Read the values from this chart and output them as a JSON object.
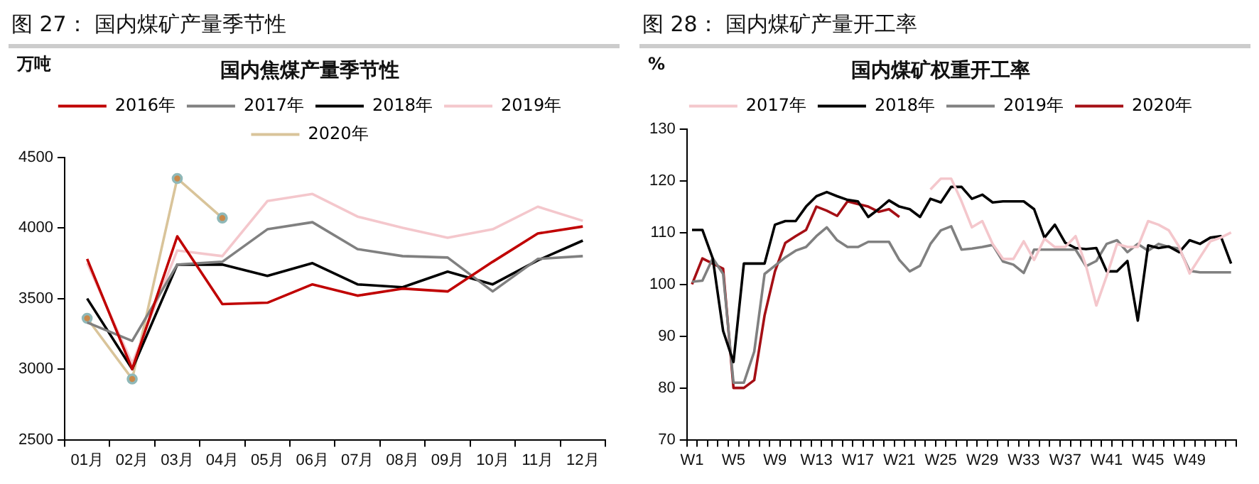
{
  "chart_data": [
    {
      "type": "line",
      "title": "图 27：  国内煤矿产量季节性",
      "subtitle": "国内焦煤产量季节性",
      "ylabel": "万吨",
      "categories": [
        "01月",
        "02月",
        "03月",
        "04月",
        "05月",
        "06月",
        "07月",
        "08月",
        "09月",
        "10月",
        "11月",
        "12月"
      ],
      "ylim": [
        2500,
        4500
      ],
      "yticks": [
        2500,
        3000,
        3500,
        4000,
        4500
      ],
      "grid": false,
      "legend": "top",
      "marker": "none",
      "line_style": "solid",
      "series": [
        {
          "name": "2016年",
          "color": "#c00000",
          "values": [
            3780,
            3000,
            3940,
            3460,
            3470,
            3600,
            3520,
            3570,
            3550,
            3760,
            3960,
            4010
          ]
        },
        {
          "name": "2017年",
          "color": "#808080",
          "values": [
            3330,
            3200,
            3740,
            3760,
            3990,
            4040,
            3850,
            3800,
            3790,
            3550,
            3780,
            3800
          ]
        },
        {
          "name": "2018年",
          "color": "#000000",
          "values": [
            3500,
            3000,
            3740,
            3740,
            3660,
            3750,
            3600,
            3580,
            3690,
            3600,
            3770,
            3910
          ]
        },
        {
          "name": "2019年",
          "color": "#f4c7cc",
          "values": [
            3750,
            3040,
            3840,
            3800,
            4190,
            4240,
            4080,
            4000,
            3930,
            3990,
            4150,
            4050
          ]
        },
        {
          "name": "2020年",
          "color": "#d9c49a",
          "marker": "circle",
          "values": [
            3360,
            2930,
            4350,
            4070,
            null,
            null,
            null,
            null,
            null,
            null,
            null,
            null
          ]
        }
      ]
    },
    {
      "type": "line",
      "title": "图 28：  国内煤矿产量开工率",
      "subtitle": "国内煤矿权重开工率",
      "ylabel": "%",
      "categories": [
        "W1",
        null,
        null,
        null,
        "W5",
        null,
        null,
        null,
        "W9",
        null,
        null,
        null,
        "W13",
        null,
        null,
        null,
        "W17",
        null,
        null,
        null,
        "W21",
        null,
        null,
        null,
        "W25",
        null,
        null,
        null,
        "W29",
        null,
        null,
        null,
        "W33",
        null,
        null,
        null,
        "W37",
        null,
        null,
        null,
        "W41",
        null,
        null,
        null,
        "W45",
        null,
        null,
        null,
        "W49",
        null,
        null,
        null,
        null
      ],
      "ylim": [
        70,
        130
      ],
      "yticks": [
        70,
        80,
        90,
        100,
        110,
        120,
        130
      ],
      "grid": false,
      "legend": "top",
      "marker": "none",
      "line_style": "solid",
      "series": [
        {
          "name": "2017年",
          "color": "#f4c7cc",
          "values": [
            null,
            null,
            null,
            null,
            null,
            null,
            null,
            null,
            null,
            null,
            null,
            null,
            null,
            null,
            null,
            null,
            null,
            null,
            null,
            null,
            null,
            null,
            null,
            118.3,
            120.4,
            120.4,
            116,
            111,
            112.2,
            107.8,
            104.9,
            104.9,
            108.3,
            104.7,
            108.8,
            107.2,
            107.2,
            109.3,
            103.6,
            95.9,
            101.6,
            107.8,
            107.2,
            107.2,
            112.2,
            111.5,
            110.4,
            107.2,
            102.1,
            105.2,
            108.3,
            109,
            110
          ]
        },
        {
          "name": "2018年",
          "color": "#000000",
          "values": [
            110.5,
            110.5,
            105,
            91,
            85,
            104,
            104,
            104,
            111.5,
            112.2,
            112.2,
            115,
            117,
            117.8,
            117,
            116.3,
            116,
            113,
            114.5,
            116.2,
            115,
            114.5,
            113,
            116.5,
            115.8,
            118.8,
            118.8,
            116.5,
            117.3,
            115.8,
            116,
            116,
            116,
            114.5,
            109,
            111.5,
            108,
            107,
            106.8,
            107,
            102.5,
            102.5,
            104.5,
            93,
            107.5,
            107,
            107.3,
            106.2,
            108.5,
            107.8,
            109,
            109.3,
            104
          ]
        },
        {
          "name": "2019年",
          "color": "#808080",
          "values": [
            100.5,
            100.7,
            105,
            102,
            81,
            81,
            87,
            102,
            103.6,
            105.2,
            106.5,
            107.2,
            109.3,
            111,
            108.5,
            107.2,
            107.2,
            108.2,
            108.2,
            108.2,
            104.7,
            102.5,
            103.6,
            107.8,
            110.4,
            111.2,
            106.7,
            106.9,
            107.2,
            107.6,
            104.4,
            103.8,
            102.2,
            106.7,
            106.7,
            106.7,
            106.7,
            106.7,
            103.5,
            104.5,
            107.8,
            108.5,
            106.2,
            107.8,
            106.5,
            107.8,
            107.2,
            106.9,
            102.6,
            102.3,
            102.3,
            102.3,
            102.3
          ]
        },
        {
          "name": "2020年",
          "color": "#a50f15",
          "values": [
            100,
            105,
            104,
            103,
            80,
            80,
            81.5,
            94,
            102.5,
            108,
            109.3,
            110.5,
            115,
            114.2,
            113.2,
            116,
            115.5,
            115,
            114,
            114.5,
            113,
            null,
            null,
            null,
            null,
            null,
            null,
            null,
            null,
            null,
            null,
            null,
            null,
            null,
            null,
            null,
            null,
            null,
            null,
            null,
            null,
            null,
            null,
            null,
            null,
            null,
            null,
            null,
            null,
            null,
            null,
            null,
            null
          ]
        }
      ]
    }
  ]
}
